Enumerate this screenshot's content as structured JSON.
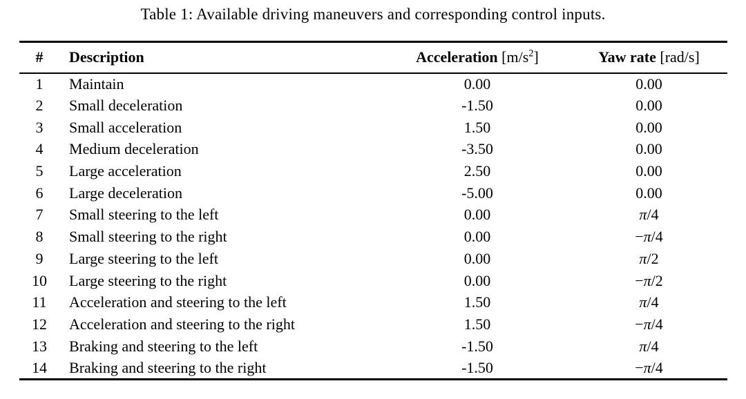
{
  "caption": "Table 1: Available driving maneuvers and corresponding control inputs.",
  "table": {
    "headers": {
      "number": "#",
      "description": "Description",
      "acceleration": {
        "label": "Acceleration",
        "unit_pre": "[m/s",
        "unit_sup": "2",
        "unit_post": "]"
      },
      "yaw_rate": {
        "label": "Yaw rate",
        "unit": "[rad/s]"
      }
    },
    "rows": [
      {
        "number": "1",
        "description": "Maintain",
        "acceleration": "0.00",
        "yaw_rate": "0.00"
      },
      {
        "number": "2",
        "description": "Small deceleration",
        "acceleration": "-1.50",
        "yaw_rate": "0.00"
      },
      {
        "number": "3",
        "description": "Small acceleration",
        "acceleration": "1.50",
        "yaw_rate": "0.00"
      },
      {
        "number": "4",
        "description": "Medium deceleration",
        "acceleration": "-3.50",
        "yaw_rate": "0.00"
      },
      {
        "number": "5",
        "description": "Large acceleration",
        "acceleration": "2.50",
        "yaw_rate": "0.00"
      },
      {
        "number": "6",
        "description": "Large deceleration",
        "acceleration": "-5.00",
        "yaw_rate": "0.00"
      },
      {
        "number": "7",
        "description": "Small steering to the left",
        "acceleration": "0.00",
        "yaw_rate": "π/4"
      },
      {
        "number": "8",
        "description": "Small steering to the right",
        "acceleration": "0.00",
        "yaw_rate": "−π/4"
      },
      {
        "number": "9",
        "description": "Large steering to the left",
        "acceleration": "0.00",
        "yaw_rate": "π/2"
      },
      {
        "number": "10",
        "description": "Large steering to the right",
        "acceleration": "0.00",
        "yaw_rate": "−π/2"
      },
      {
        "number": "11",
        "description": "Acceleration and steering to the left",
        "acceleration": "1.50",
        "yaw_rate": "π/4"
      },
      {
        "number": "12",
        "description": "Acceleration and steering to the right",
        "acceleration": "1.50",
        "yaw_rate": "−π/4"
      },
      {
        "number": "13",
        "description": "Braking and steering to the left",
        "acceleration": "-1.50",
        "yaw_rate": "π/4"
      },
      {
        "number": "14",
        "description": "Braking and steering to the right",
        "acceleration": "-1.50",
        "yaw_rate": "−π/4"
      }
    ]
  }
}
